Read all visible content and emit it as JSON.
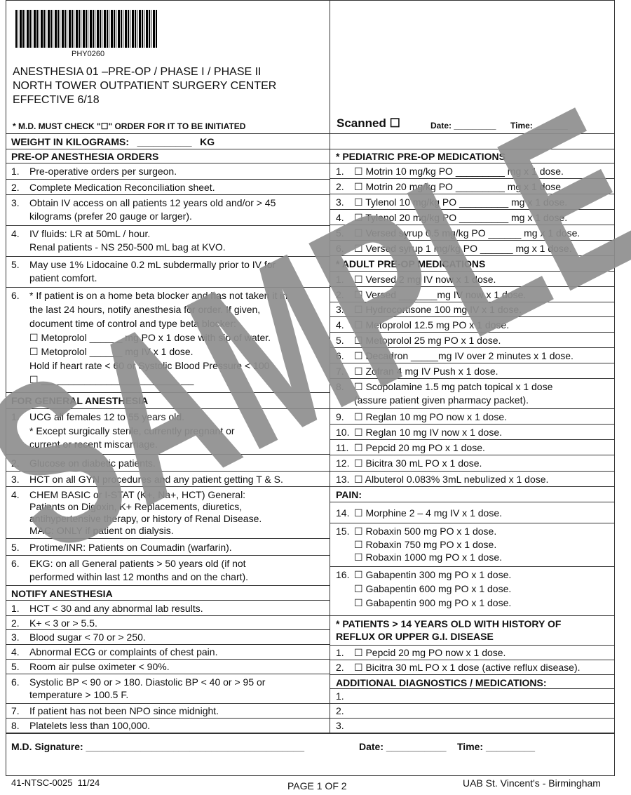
{
  "header": {
    "barcode": "PHY0260",
    "title_lines": [
      "ANESTHESIA 01 –PRE-OP / PHASE I / PHASE II",
      "NORTH TOWER OUTPATIENT SURGERY CENTER",
      "EFFECTIVE 6/18"
    ],
    "must_check": "* M.D. MUST CHECK \"☐\" ORDER FOR IT TO BE INITIATED",
    "scanned": "Scanned ☐",
    "date": "Date: _________",
    "time": "Time: _______"
  },
  "weight": "WEIGHT IN KILOGRAMS:   __________   KG",
  "left": [
    {
      "heading": "PRE-OP ANESTHESIA ORDERS"
    },
    {
      "num": "1.",
      "lines": [
        "Pre-operative orders per surgeon."
      ]
    },
    {
      "num": "2.",
      "lines": [
        "Complete Medication Reconciliation sheet."
      ]
    },
    {
      "num": "3.",
      "lines": [
        "Obtain IV access on all patients 12 years old and/or > 45",
        "kilograms (prefer 20 gauge or larger)."
      ]
    },
    {
      "num": "4.",
      "lines": [
        "IV fluids: LR at 50mL / hour.",
        "Renal patients - NS 250-500 mL bag at KVO."
      ]
    },
    {
      "num": "5.",
      "lines": [
        "May use 1% Lidocaine 0.2 mL subdermally prior to IV for",
        "patient comfort."
      ]
    },
    {
      "num": "6.",
      "lines": [
        "* If patient is on a home beta blocker and has not taken it in",
        "the last 24 hours, notify anesthesia for order. If given,",
        "document time of control and type beta blocker:",
        "☐ Metoprolol ______ mg PO x 1 dose with sip of water.",
        "☐ Metoprolol ______ mg IV x 1 dose.",
        "Hold if heart rate < 60 or Systolic Blood Pressure < 100",
        "☐ ____________________________"
      ]
    },
    {
      "heading": "FOR GENERAL ANESTHESIA"
    },
    {
      "num": "1.",
      "lines": [
        "UCG all females 12 to 55 years old.",
        "* Except surgically sterile, currently pregnant or",
        "current or recent miscarriage."
      ]
    },
    {
      "num": "2.",
      "lines": [
        "Glucose on diabetic patients."
      ]
    },
    {
      "num": "3.",
      "lines": [
        "HCT on all GYN procedures and any patient getting T & S."
      ]
    },
    {
      "num": "4.",
      "lines": [
        "CHEM BASIC or I-STAT (K+, Na+, HCT) General:",
        "Patients on Digoxin, K+ Replacements, diuretics,",
        "antihypertensive therapy, or history of Renal Disease.",
        "MAC: ONLY if patient on dialysis."
      ]
    },
    {
      "num": "5.",
      "lines": [
        "Protime/INR: Patients on Coumadin (warfarin)."
      ]
    },
    {
      "num": "6.",
      "lines": [
        "EKG: on all General patients > 50 years old (if not",
        "performed within last 12 months and on the chart)."
      ]
    },
    {
      "heading": "NOTIFY ANESTHESIA"
    },
    {
      "num": "1.",
      "lines": [
        "HCT < 30 and any abnormal lab results."
      ]
    },
    {
      "num": "2.",
      "lines": [
        "K+ < 3 or > 5.5."
      ]
    },
    {
      "num": "3.",
      "lines": [
        "Blood sugar < 70 or > 250."
      ]
    },
    {
      "num": "4.",
      "lines": [
        "Abnormal ECG or complaints of chest pain."
      ]
    },
    {
      "num": "5.",
      "lines": [
        "Room air pulse oximeter < 90%."
      ]
    },
    {
      "num": "6.",
      "lines": [
        "Systolic BP < 90 or > 180. Diastolic BP < 40 or > 95 or",
        "temperature > 100.5 F."
      ]
    },
    {
      "num": "7.",
      "lines": [
        "If patient has not been NPO since midnight."
      ]
    },
    {
      "num": "8.",
      "lines": [
        "Platelets less than 100,000."
      ]
    }
  ],
  "right": [
    {
      "heading": "* PEDIATRIC PRE-OP MEDICATIONS"
    },
    {
      "num": "1.",
      "lines": [
        "☐ Motrin 10 mg/kg PO _________ mg x 1 dose."
      ]
    },
    {
      "num": "2.",
      "lines": [
        "☐ Motrin 20 mg/kg PO _________ mg x 1 dose."
      ]
    },
    {
      "num": "3.",
      "lines": [
        "☐ Tylenol 10 mg/kg PO _________ mg x 1 dose."
      ]
    },
    {
      "num": "4.",
      "lines": [
        "☐ Tylenol 20 mg/kg PO _________ mg x 1 dose."
      ]
    },
    {
      "num": "5.",
      "lines": [
        "☐ Versed syrup 0.5 mg/kg PO ______ mg x 1 dose."
      ]
    },
    {
      "num": "6.",
      "lines": [
        "☐ Versed syrup 1 mg/kg PO ______ mg x 1 dose."
      ]
    },
    {
      "heading": "* ADULT PRE-OP MEDICATIONS"
    },
    {
      "num": "1.",
      "lines": [
        "☐ Versed 2 mg IV now x 1 dose."
      ]
    },
    {
      "num": "2.",
      "lines": [
        "☐ Versed _______mg IV now x 1 dose."
      ]
    },
    {
      "num": "3.",
      "lines": [
        "☐ Hydrocortisone 100 mg IV x 1 dose."
      ]
    },
    {
      "num": "4.",
      "lines": [
        "☐ Metoprolol 12.5 mg PO x 1 dose."
      ]
    },
    {
      "num": "5.",
      "lines": [
        "☐ Metoprolol 25 mg PO x 1 dose."
      ]
    },
    {
      "num": "6.",
      "lines": [
        "☐ Decadron _____mg IV over 2 minutes x 1 dose."
      ]
    },
    {
      "num": "7.",
      "lines": [
        "☐ Zofran 4 mg IV Push x 1 dose."
      ]
    },
    {
      "num": "8.",
      "lines": [
        "☐ Scopolamine 1.5 mg patch topical x 1 dose",
        "(assure patient given pharmacy packet)."
      ]
    },
    {
      "num": "9.",
      "lines": [
        "☐ Reglan 10 mg PO now x 1 dose."
      ]
    },
    {
      "num": "10.",
      "lines": [
        "☐ Reglan 10 mg IV now x 1 dose."
      ]
    },
    {
      "num": "11.",
      "lines": [
        "☐ Pepcid 20 mg PO x 1 dose."
      ]
    },
    {
      "num": "12.",
      "lines": [
        "☐ Bicitra 30 mL PO x 1 dose."
      ]
    },
    {
      "num": "13.",
      "lines": [
        "☐ Albuterol 0.083% 3mL nebulized x 1 dose."
      ]
    },
    {
      "heading": "PAIN:"
    },
    {
      "num": "14.",
      "lines": [
        "☐ Morphine 2 – 4 mg IV x 1 dose."
      ]
    },
    {
      "num": "15.",
      "lines": [
        "☐ Robaxin 500 mg PO x 1 dose.",
        "☐ Robaxin 750 mg PO x 1 dose.",
        "☐ Robaxin 1000 mg PO x 1 dose."
      ]
    },
    {
      "num": "16.",
      "lines": [
        "☐ Gabapentin 300 mg PO x 1 dose.",
        "☐ Gabapentin 600 mg PO x 1 dose.",
        "☐ Gabapentin 900 mg PO x 1 dose."
      ]
    },
    {
      "heading": "* PATIENTS > 14 YEARS OLD WITH HISTORY OF",
      "heading2": "REFLUX OR UPPER G.I. DISEASE"
    },
    {
      "num": "1.",
      "lines": [
        "☐ Pepcid 20 mg PO now x 1 dose."
      ]
    },
    {
      "num": "2.",
      "lines": [
        "☐ Bicitra 30 mL PO x 1 dose (active reflux disease)."
      ]
    },
    {
      "heading": "ADDITIONAL DIAGNOSTICS / MEDICATIONS:"
    },
    {
      "num": "1.",
      "lines": []
    },
    {
      "num": "2.",
      "lines": []
    },
    {
      "num": "3.",
      "lines": []
    }
  ],
  "signature": {
    "md": "M.D. Signature: ________________________________________",
    "date": "Date: ___________",
    "time": "Time: _________"
  },
  "footer": {
    "form": "41-NTSC-0025  11/24",
    "page": "PAGE 1 OF 2",
    "org": "UAB St. Vincent's - Birmingham"
  },
  "watermark": "SAMPLE"
}
